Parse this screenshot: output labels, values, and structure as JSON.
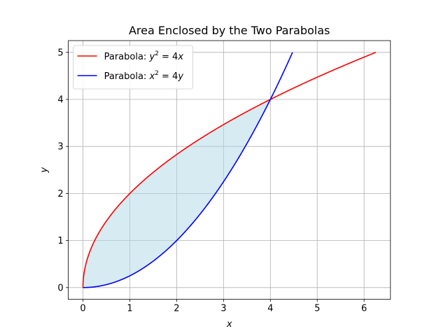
{
  "chart_data": {
    "type": "line",
    "title": "Area Enclosed by the Two Parabolas",
    "xlabel": "x",
    "ylabel": "y",
    "xlim": [
      -0.3125,
      6.5625
    ],
    "ylim": [
      -0.25,
      5.25
    ],
    "xticks": [
      "0",
      "1",
      "2",
      "3",
      "4",
      "5",
      "6"
    ],
    "yticks": [
      "0",
      "1",
      "2",
      "3",
      "4",
      "5"
    ],
    "grid": true,
    "legend_position": "top-left",
    "series": [
      {
        "name_prefix": "Parabola: ",
        "name_eq": [
          "y",
          "2",
          " = 4",
          "x"
        ],
        "color": "#ff0000",
        "equation": "y^2 = 4x",
        "x_range": [
          0,
          6.25
        ],
        "points": [
          [
            0,
            0
          ],
          [
            0.25,
            1
          ],
          [
            1,
            2
          ],
          [
            2.25,
            3
          ],
          [
            4,
            4
          ],
          [
            6.25,
            5
          ]
        ]
      },
      {
        "name_prefix": "Parabola: ",
        "name_eq": [
          "x",
          "2",
          " = 4",
          "y"
        ],
        "color": "#0000ff",
        "equation": "x^2 = 4y",
        "x_range": [
          0,
          4.472
        ],
        "points": [
          [
            0,
            0
          ],
          [
            1,
            0.25
          ],
          [
            2,
            1
          ],
          [
            3,
            2.25
          ],
          [
            4,
            4
          ],
          [
            4.472,
            5
          ]
        ]
      }
    ],
    "fill_between": {
      "x_range": [
        0,
        4
      ],
      "upper": "y = 2*sqrt(x)",
      "lower": "y = x^2/4",
      "color": "#add8e6",
      "alpha": 0.5
    }
  }
}
